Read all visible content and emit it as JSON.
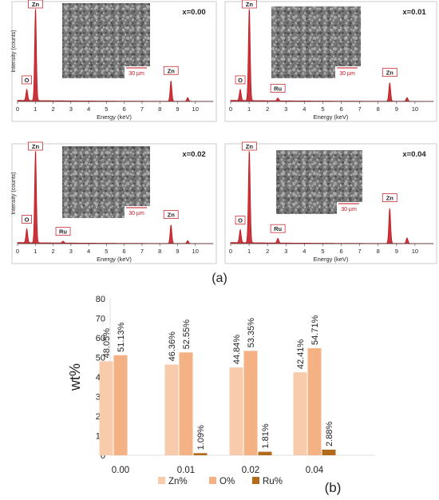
{
  "figure": {
    "panel_a_label": "(a)",
    "panel_b_label": "(b)",
    "sem_scale_label": "30 µm"
  },
  "chart_data": [
    {
      "type": "line",
      "panel": "x=0.00",
      "title": "x=0.00",
      "xlabel": "Energy (keV)",
      "ylabel": "Intensity (counts)",
      "xlim": [
        0,
        11
      ],
      "xticks": [
        0,
        1,
        2,
        3,
        4,
        5,
        6,
        7,
        8,
        9,
        10
      ],
      "series_color": "#c0121a",
      "peaks": [
        {
          "x": 0.52,
          "y": 0.12,
          "label": "O"
        },
        {
          "x": 1.01,
          "y": 1.0,
          "label": "Zn"
        },
        {
          "x": 8.63,
          "y": 0.22,
          "label": "Zn"
        },
        {
          "x": 9.57,
          "y": 0.04,
          "label": ""
        }
      ]
    },
    {
      "type": "line",
      "panel": "x=0.01",
      "title": "x=0.01",
      "xlabel": "Energy (keV)",
      "ylabel": "",
      "xlim": [
        0,
        11
      ],
      "xticks": [
        0,
        1,
        2,
        3,
        4,
        5,
        6,
        7,
        8,
        9,
        10
      ],
      "series_color": "#c0121a",
      "peaks": [
        {
          "x": 0.52,
          "y": 0.12,
          "label": "O"
        },
        {
          "x": 1.01,
          "y": 1.0,
          "label": "Zn"
        },
        {
          "x": 2.56,
          "y": 0.03,
          "label": "Ru"
        },
        {
          "x": 8.63,
          "y": 0.2,
          "label": "Zn"
        },
        {
          "x": 9.57,
          "y": 0.04,
          "label": ""
        }
      ]
    },
    {
      "type": "line",
      "panel": "x=0.02",
      "title": "x=0.02",
      "xlabel": "Energy (keV)",
      "ylabel": "Intensity (counts)",
      "xlim": [
        0,
        11
      ],
      "xticks": [
        0,
        1,
        2,
        3,
        4,
        5,
        6,
        7,
        8,
        9,
        10
      ],
      "series_color": "#c0121a",
      "peaks": [
        {
          "x": 0.52,
          "y": 0.15,
          "label": "O"
        },
        {
          "x": 1.01,
          "y": 1.0,
          "label": "Zn"
        },
        {
          "x": 2.56,
          "y": 0.02,
          "label": "Ru"
        },
        {
          "x": 8.63,
          "y": 0.2,
          "label": "Zn"
        },
        {
          "x": 9.57,
          "y": 0.03,
          "label": ""
        }
      ]
    },
    {
      "type": "line",
      "panel": "x=0.04",
      "title": "x=0.04",
      "xlabel": "Energy (keV)",
      "ylabel": "",
      "xlim": [
        0,
        11
      ],
      "xticks": [
        0,
        1,
        2,
        3,
        4,
        5,
        6,
        7,
        8,
        9,
        10
      ],
      "series_color": "#c0121a",
      "peaks": [
        {
          "x": 0.52,
          "y": 0.14,
          "label": "O"
        },
        {
          "x": 1.01,
          "y": 1.0,
          "label": "Zn"
        },
        {
          "x": 2.56,
          "y": 0.05,
          "label": "Ru"
        },
        {
          "x": 8.63,
          "y": 0.38,
          "label": "Zn"
        },
        {
          "x": 9.57,
          "y": 0.06,
          "label": ""
        }
      ]
    },
    {
      "type": "bar",
      "panel": "b",
      "title": "",
      "xlabel": "",
      "ylabel": "wt%",
      "ylim": [
        0,
        80
      ],
      "yticks": [
        0,
        10,
        20,
        30,
        40,
        50,
        60,
        70,
        80
      ],
      "categories": [
        "0.00",
        "0.01",
        "0.02",
        "0.04"
      ],
      "series": [
        {
          "name": "Zn%",
          "color": "#f8cbad",
          "values": [
            48.05,
            46.36,
            44.84,
            42.41
          ],
          "labels": [
            "48.05%",
            "46.36%",
            "44.84%",
            "42.41%"
          ]
        },
        {
          "name": "O%",
          "color": "#f4b183",
          "values": [
            51.13,
            52.55,
            53.35,
            54.71
          ],
          "labels": [
            "51.13%",
            "52.55%",
            "53.35%",
            "54.71%"
          ]
        },
        {
          "name": "Ru%",
          "color": "#b26b1a",
          "values": [
            0,
            1.09,
            1.81,
            2.88
          ],
          "labels": [
            "",
            "1.09%",
            "1.81%",
            "2.88%"
          ]
        }
      ],
      "legend_position": "bottom",
      "grid": false
    }
  ]
}
